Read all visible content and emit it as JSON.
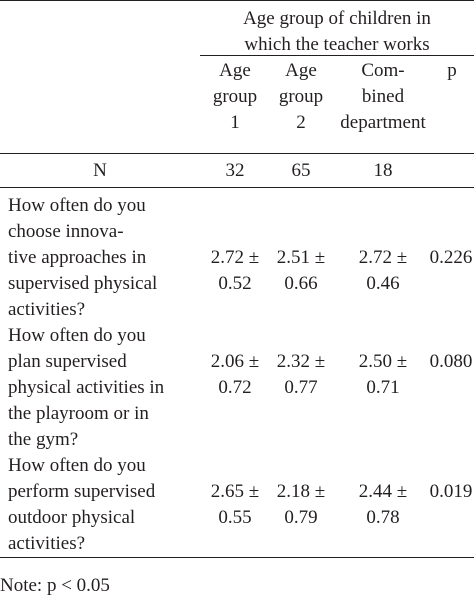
{
  "table": {
    "group_header": [
      "Age group of children in",
      "which the teacher works"
    ],
    "columns": [
      {
        "lines": [
          "Age",
          "group",
          "1"
        ]
      },
      {
        "lines": [
          "Age",
          "group",
          "2"
        ]
      },
      {
        "lines": [
          "Com-",
          "bined",
          "department"
        ]
      },
      {
        "lines": [
          "p"
        ]
      }
    ],
    "n_row": {
      "label": "N",
      "values": [
        "32",
        "65",
        "18",
        ""
      ]
    },
    "rows": [
      {
        "question": [
          "How often do you",
          "choose innova-",
          "tive approaches in",
          "supervised physical",
          "activities?"
        ],
        "values": [
          [
            "2.72 ±",
            "0.52"
          ],
          [
            "2.51 ±",
            "0.66"
          ],
          [
            "2.72 ±",
            "0.46"
          ],
          [
            "0.226"
          ]
        ]
      },
      {
        "question": [
          "How often do you",
          "plan supervised",
          "physical activities in",
          "the playroom or in",
          "the gym?"
        ],
        "values": [
          [
            "2.06 ±",
            "0.72"
          ],
          [
            "2.32 ±",
            "0.77"
          ],
          [
            "2.50 ±",
            "0.71"
          ],
          [
            "0.080"
          ]
        ]
      },
      {
        "question": [
          "How often do you",
          "perform supervised",
          "outdoor physical",
          "activities?"
        ],
        "values": [
          [
            "2.65 ±",
            "0.55"
          ],
          [
            "2.18 ±",
            "0.79"
          ],
          [
            "2.44 ±",
            "0.78"
          ],
          [
            "0.019"
          ]
        ]
      }
    ]
  },
  "note": "Note: p < 0.05"
}
